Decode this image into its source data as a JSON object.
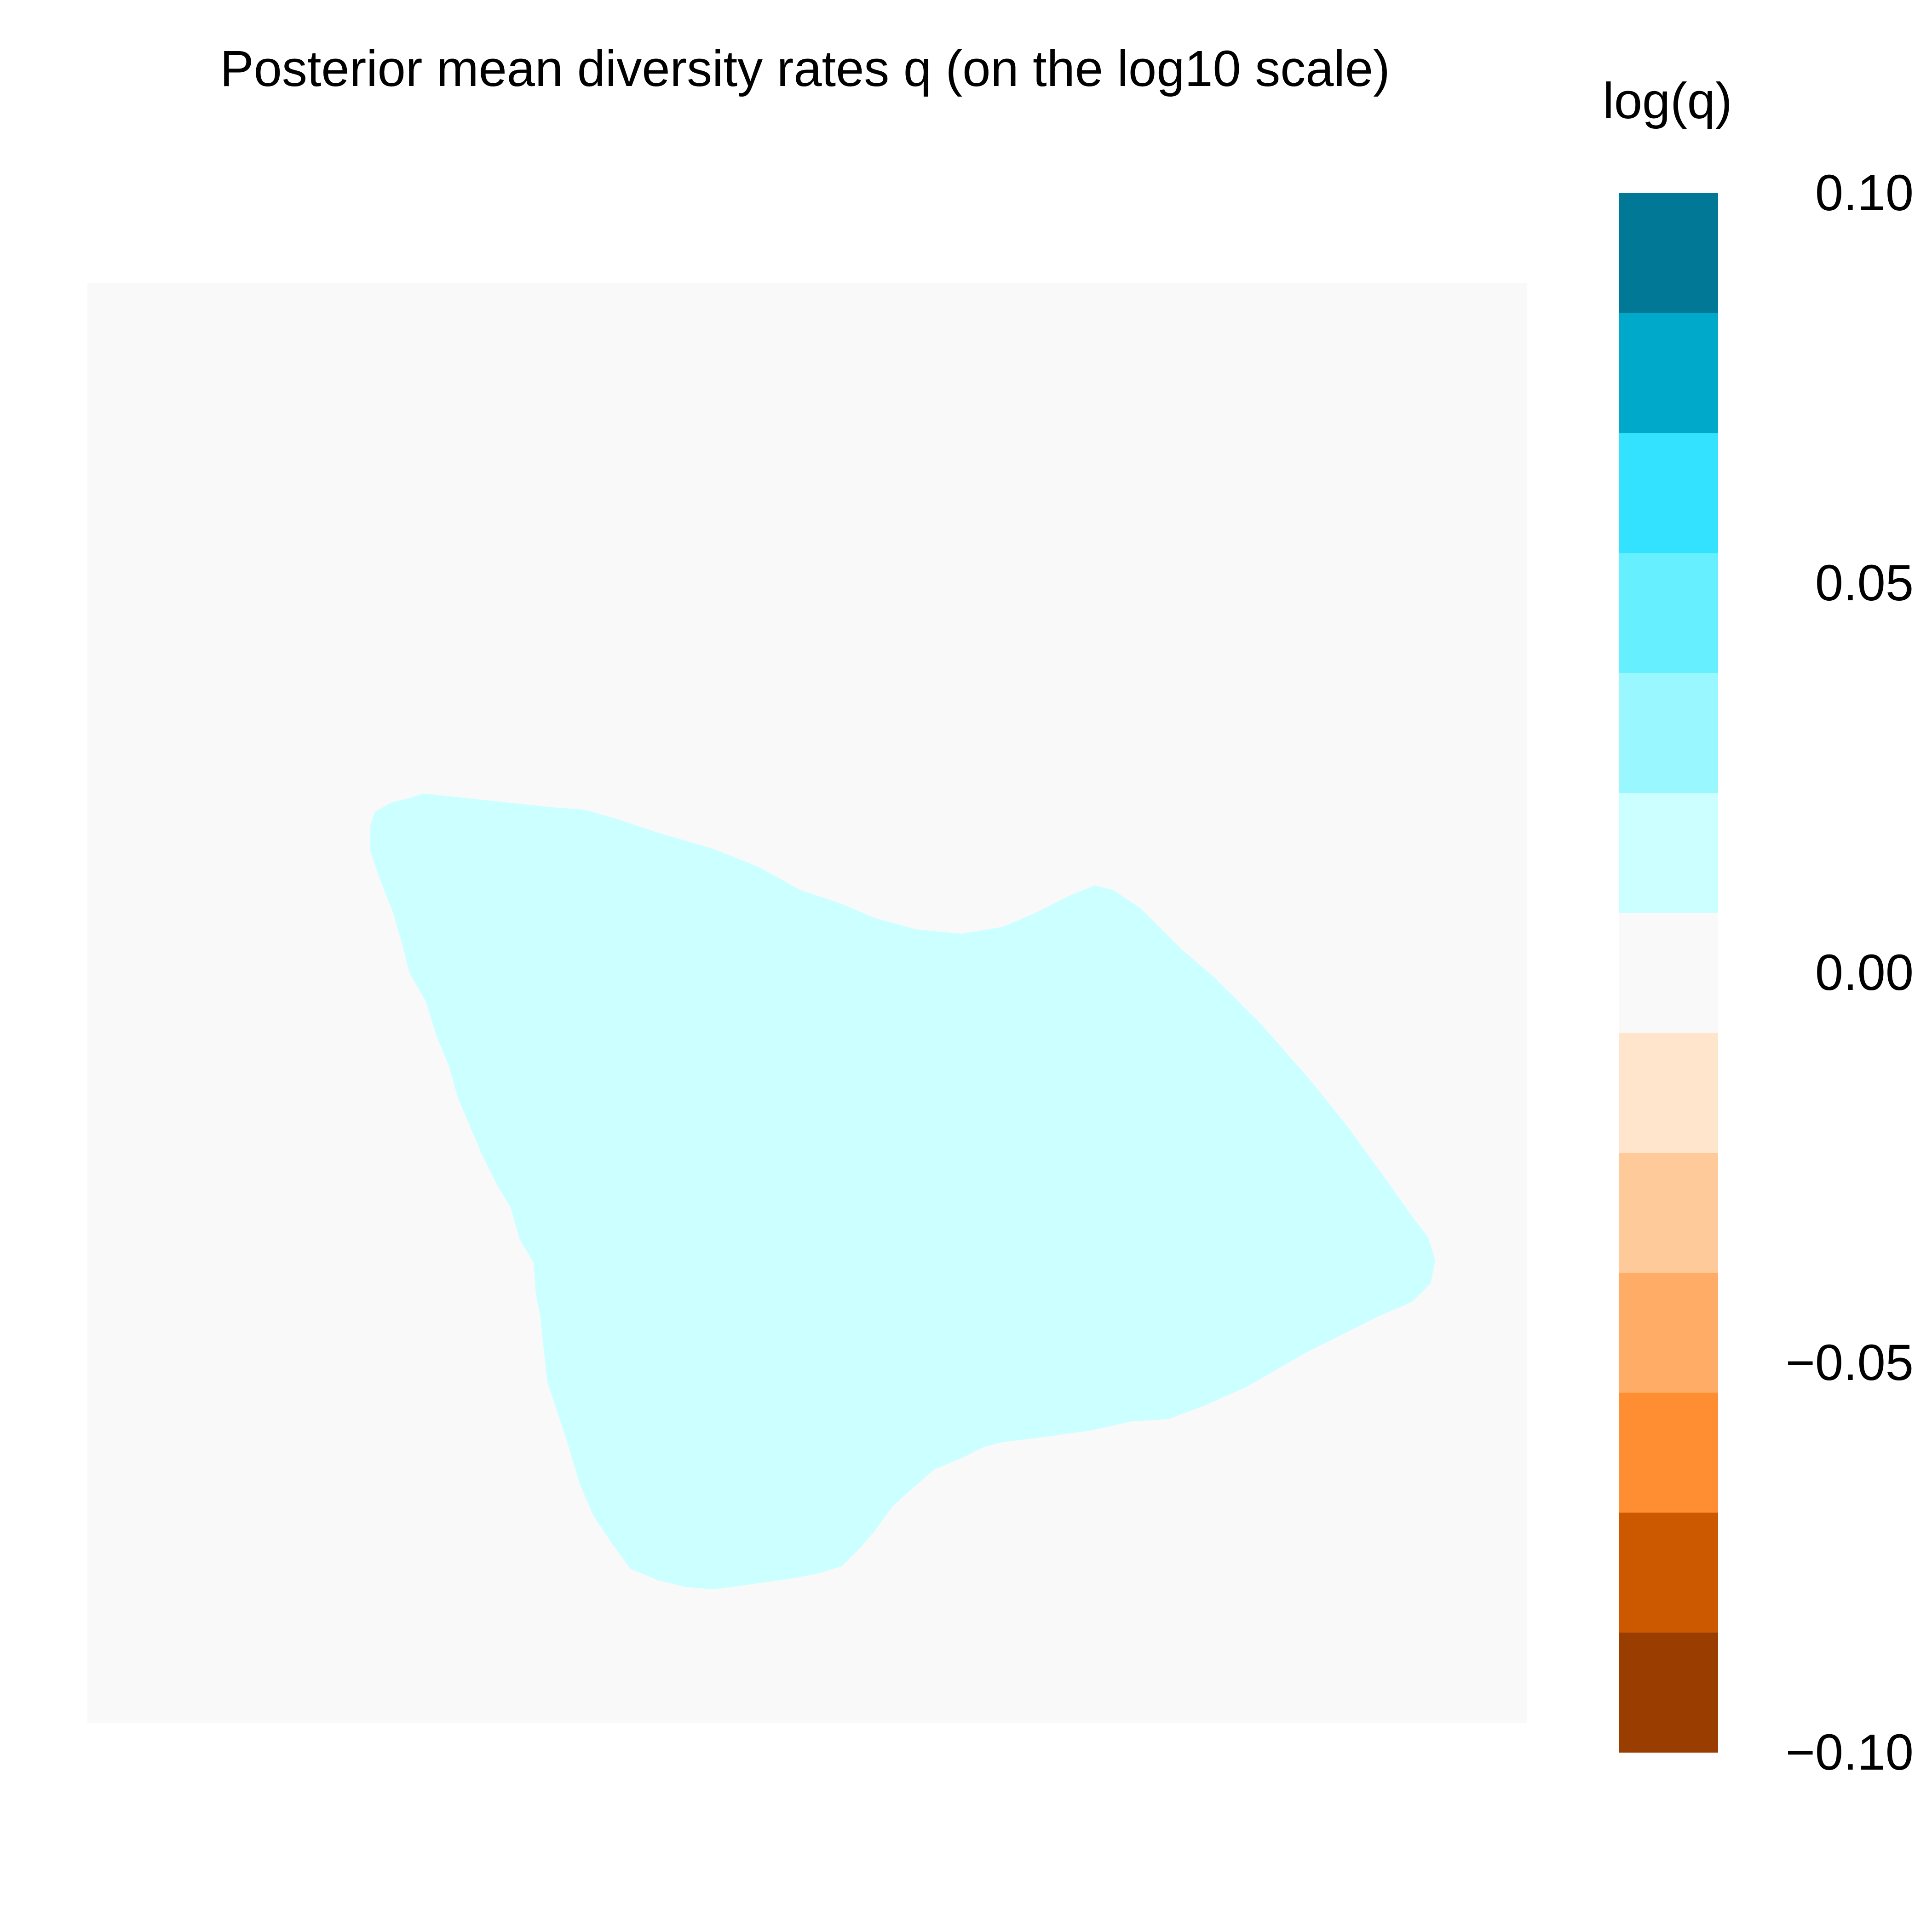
{
  "title": "Posterior mean diversity rates q (on the log10 scale)",
  "legend": {
    "title": "log(q)",
    "min": -0.1,
    "max": 0.1,
    "ticks": [
      {
        "value": 0.1,
        "label": "0.10"
      },
      {
        "value": 0.05,
        "label": "0.05"
      },
      {
        "value": 0.0,
        "label": "0.00"
      },
      {
        "value": -0.05,
        "label": "−0.05"
      },
      {
        "value": -0.1,
        "label": "−0.10"
      }
    ],
    "colors_top_to_bottom": [
      "#007896",
      "#00A9CA",
      "#33E2FF",
      "#66EFFF",
      "#99F7FF",
      "#CCFFFF",
      "#F9F9F9",
      "#FFE5CC",
      "#FFCA99",
      "#FFAD66",
      "#FF8E33",
      "#CC5800",
      "#993D00"
    ]
  },
  "map": {
    "background_color": "#F9F9F9",
    "region_color": "#CCFFFF",
    "region_value_bin": "0.00 to 0.015"
  }
}
